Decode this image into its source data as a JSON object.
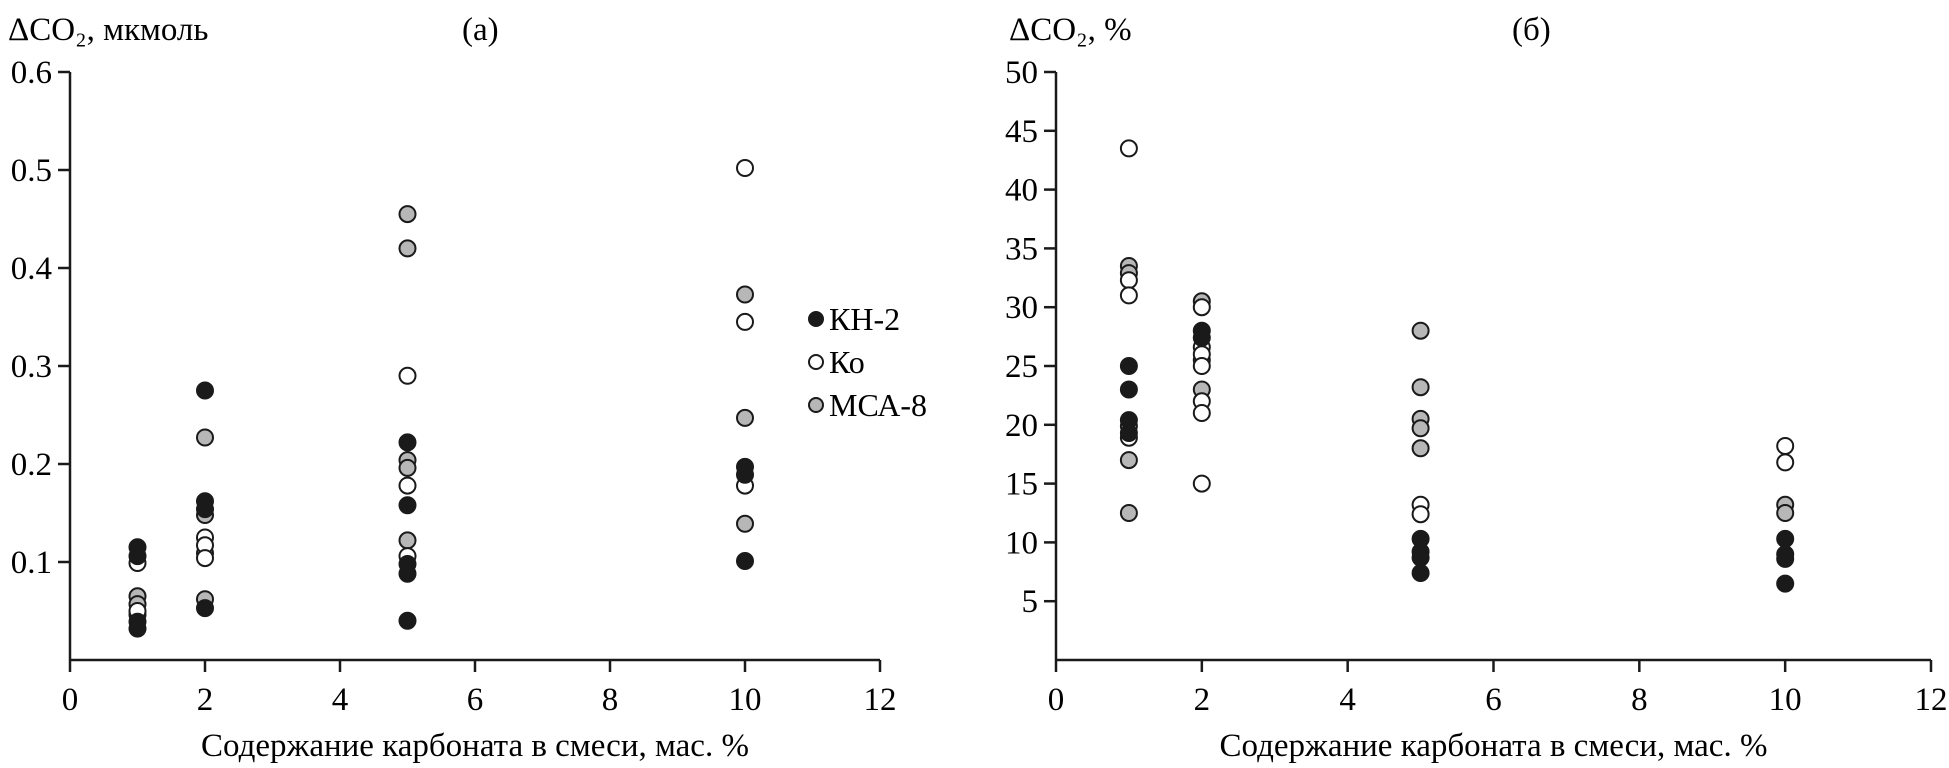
{
  "figure": {
    "background": "#ffffff",
    "description": "Two scatter panels (а) and (б) of CO2 change vs carbonate content"
  },
  "colors": {
    "marker_black": "#1a1a1a",
    "marker_gray": "#b7b7b7",
    "marker_open_fill": "#ffffff",
    "axis": "#1a1a1a",
    "text": "#000000"
  },
  "chart_data": [
    {
      "type": "scatter",
      "panel_label": "(а)",
      "ylabel": "ΔCO₂, мкмоль",
      "xlabel": "Содержание карбоната в смеси, мас. %",
      "xlim": [
        0,
        12
      ],
      "ylim": [
        0,
        0.6
      ],
      "xticks": [
        0,
        2,
        4,
        6,
        8,
        10,
        12
      ],
      "xtick_labels": [
        "0",
        "2",
        "4",
        "6",
        "8",
        "10",
        "12"
      ],
      "yticks": [
        0.1,
        0.2,
        0.3,
        0.4,
        0.5,
        0.6
      ],
      "ytick_labels": [
        "0.1",
        "0.2",
        "0.3",
        "0.4",
        "0.5",
        "0.6"
      ],
      "grid": false,
      "legend": {
        "show": true,
        "position": "right-middle"
      },
      "series": [
        {
          "id": "kn2",
          "name": "КН-2",
          "marker": "filled-black",
          "points": [
            [
              1,
              0.115
            ],
            [
              1,
              0.106
            ],
            [
              1,
              0.039
            ],
            [
              1,
              0.032
            ],
            [
              2,
              0.275
            ],
            [
              2,
              0.162
            ],
            [
              2,
              0.154
            ],
            [
              2,
              0.053
            ],
            [
              5,
              0.222
            ],
            [
              5,
              0.158
            ],
            [
              5,
              0.098
            ],
            [
              5,
              0.088
            ],
            [
              5,
              0.04
            ],
            [
              10,
              0.197
            ],
            [
              10,
              0.189
            ],
            [
              10,
              0.101
            ]
          ]
        },
        {
          "id": "ko",
          "name": "Ко",
          "marker": "open",
          "points": [
            [
              1,
              0.099
            ],
            [
              1,
              0.05
            ],
            [
              2,
              0.125
            ],
            [
              2,
              0.117
            ],
            [
              2,
              0.104
            ],
            [
              5,
              0.29
            ],
            [
              5,
              0.178
            ],
            [
              5,
              0.106
            ],
            [
              10,
              0.502
            ],
            [
              10,
              0.345
            ],
            [
              10,
              0.178
            ]
          ]
        },
        {
          "id": "msa8",
          "name": "МСА-8",
          "marker": "filled-gray",
          "points": [
            [
              1,
              0.065
            ],
            [
              1,
              0.057
            ],
            [
              1,
              0.046
            ],
            [
              2,
              0.227
            ],
            [
              2,
              0.148
            ],
            [
              2,
              0.109
            ],
            [
              2,
              0.062
            ],
            [
              5,
              0.455
            ],
            [
              5,
              0.42
            ],
            [
              5,
              0.204
            ],
            [
              5,
              0.196
            ],
            [
              5,
              0.122
            ],
            [
              10,
              0.373
            ],
            [
              10,
              0.247
            ],
            [
              10,
              0.139
            ]
          ]
        }
      ]
    },
    {
      "type": "scatter",
      "panel_label": "(б)",
      "ylabel": "ΔCO₂, %",
      "xlabel": "Содержание карбоната в смеси, мас. %",
      "xlim": [
        0,
        12
      ],
      "ylim": [
        0,
        50
      ],
      "xticks": [
        0,
        2,
        4,
        6,
        8,
        10,
        12
      ],
      "xtick_labels": [
        "0",
        "2",
        "4",
        "6",
        "8",
        "10",
        "12"
      ],
      "yticks": [
        5,
        10,
        15,
        20,
        25,
        30,
        35,
        40,
        45,
        50
      ],
      "ytick_labels": [
        "5",
        "10",
        "15",
        "20",
        "25",
        "30",
        "35",
        "40",
        "45",
        "50"
      ],
      "grid": false,
      "legend": {
        "show": false
      },
      "series": [
        {
          "id": "kn2",
          "name": "КН-2",
          "marker": "filled-black",
          "points": [
            [
              1,
              25.0
            ],
            [
              1,
              23.0
            ],
            [
              1,
              20.4
            ],
            [
              1,
              19.3
            ],
            [
              2,
              28.0
            ],
            [
              2,
              27.4
            ],
            [
              5,
              10.3
            ],
            [
              5,
              9.2
            ],
            [
              5,
              8.7
            ],
            [
              5,
              7.4
            ],
            [
              10,
              10.3
            ],
            [
              10,
              9.0
            ],
            [
              10,
              8.6
            ],
            [
              10,
              6.5
            ]
          ]
        },
        {
          "id": "ko",
          "name": "Ко",
          "marker": "open",
          "points": [
            [
              1,
              43.5
            ],
            [
              1,
              32.3
            ],
            [
              1,
              31.0
            ],
            [
              1,
              19.9
            ],
            [
              1,
              18.9
            ],
            [
              2,
              30.0
            ],
            [
              2,
              26.6
            ],
            [
              2,
              26.0
            ],
            [
              2,
              25.0
            ],
            [
              2,
              22.0
            ],
            [
              2,
              21.0
            ],
            [
              2,
              15.0
            ],
            [
              5,
              13.2
            ],
            [
              5,
              12.4
            ],
            [
              10,
              18.2
            ],
            [
              10,
              16.8
            ]
          ]
        },
        {
          "id": "msa8",
          "name": "МСА-8",
          "marker": "filled-gray",
          "points": [
            [
              1,
              33.5
            ],
            [
              1,
              32.9
            ],
            [
              1,
              17.0
            ],
            [
              1,
              12.5
            ],
            [
              2,
              30.5
            ],
            [
              2,
              25.5
            ],
            [
              2,
              23.0
            ],
            [
              5,
              28.0
            ],
            [
              5,
              23.2
            ],
            [
              5,
              20.5
            ],
            [
              5,
              19.7
            ],
            [
              5,
              18.0
            ],
            [
              10,
              13.2
            ],
            [
              10,
              12.5
            ]
          ]
        }
      ]
    }
  ]
}
